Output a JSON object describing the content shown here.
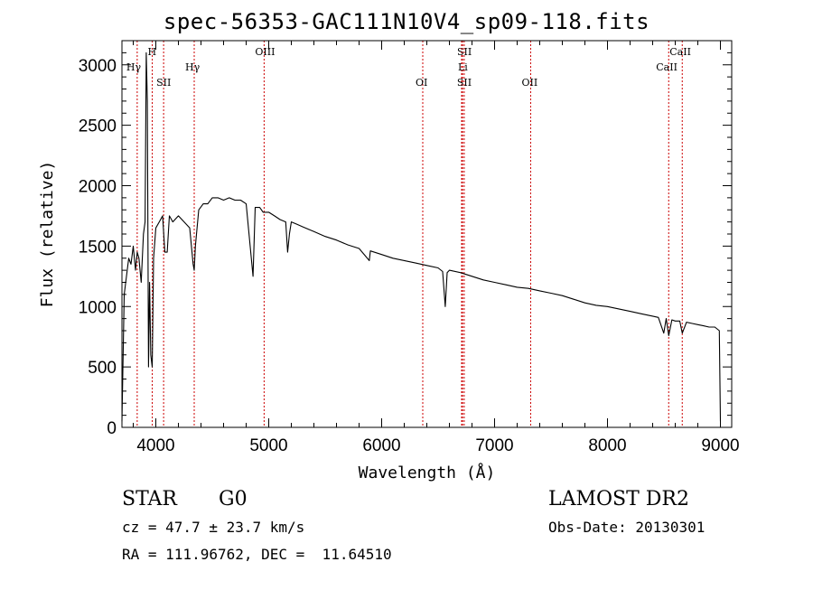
{
  "chart_data": {
    "type": "line",
    "title": "spec-56353-GAC111N10V4_sp09-118.fits",
    "xlabel": "Wavelength (Å)",
    "ylabel": "Flux (relative)",
    "xlim": [
      3700,
      9100
    ],
    "ylim": [
      0,
      3200
    ],
    "x_ticks": [
      4000,
      5000,
      6000,
      7000,
      8000,
      9000
    ],
    "y_ticks": [
      0,
      500,
      1000,
      1500,
      2000,
      2500,
      3000
    ],
    "grid": false,
    "series": [
      {
        "x": [
          3700,
          3720,
          3740,
          3760,
          3780,
          3800,
          3820,
          3835,
          3850,
          3870,
          3890,
          3905,
          3915,
          3925,
          3935,
          3945,
          3955,
          3968,
          3980,
          4000,
          4030,
          4060,
          4080,
          4101,
          4120,
          4150,
          4200,
          4250,
          4300,
          4330,
          4340,
          4350,
          4380,
          4420,
          4460,
          4500,
          4550,
          4600,
          4650,
          4700,
          4750,
          4800,
          4861,
          4880,
          4920,
          4950,
          5000,
          5050,
          5100,
          5150,
          5167,
          5183,
          5200,
          5250,
          5300,
          5400,
          5500,
          5600,
          5700,
          5800,
          5890,
          5900,
          6000,
          6100,
          6200,
          6300,
          6400,
          6500,
          6540,
          6563,
          6580,
          6600,
          6700,
          6800,
          6900,
          7000,
          7100,
          7200,
          7300,
          7400,
          7500,
          7600,
          7700,
          7800,
          7900,
          8000,
          8100,
          8200,
          8300,
          8400,
          8450,
          8498,
          8520,
          8542,
          8570,
          8600,
          8640,
          8662,
          8700,
          8750,
          8800,
          8850,
          8900,
          8950,
          8990,
          9000
        ],
        "y": [
          50,
          1100,
          1250,
          1400,
          1350,
          1500,
          1300,
          1450,
          1400,
          1200,
          1600,
          1700,
          3100,
          2700,
          500,
          1200,
          600,
          500,
          1400,
          1650,
          1700,
          1750,
          1450,
          1450,
          1750,
          1700,
          1750,
          1700,
          1650,
          1350,
          1300,
          1500,
          1800,
          1850,
          1850,
          1900,
          1900,
          1880,
          1900,
          1880,
          1880,
          1850,
          1250,
          1820,
          1820,
          1780,
          1780,
          1750,
          1720,
          1700,
          1450,
          1600,
          1700,
          1680,
          1660,
          1620,
          1580,
          1550,
          1510,
          1480,
          1380,
          1460,
          1430,
          1400,
          1380,
          1360,
          1340,
          1320,
          1290,
          1000,
          1280,
          1300,
          1280,
          1250,
          1220,
          1200,
          1180,
          1160,
          1150,
          1130,
          1110,
          1090,
          1060,
          1030,
          1010,
          1000,
          980,
          960,
          940,
          920,
          910,
          780,
          900,
          760,
          890,
          880,
          880,
          780,
          870,
          860,
          850,
          840,
          830,
          830,
          800,
          50
        ]
      }
    ],
    "line_ids": [
      {
        "name": "Hγ",
        "x": 3835
      },
      {
        "name": "H",
        "x": 3968
      },
      {
        "name": "SII",
        "x": 4069
      },
      {
        "name": "Hγ",
        "x": 4340
      },
      {
        "name": "OIII",
        "x": 4959
      },
      {
        "name": "OI",
        "x": 6364
      },
      {
        "name": "SII",
        "x": 6716
      },
      {
        "name": "Li",
        "x": 6708
      },
      {
        "name": "SII",
        "x": 6731
      },
      {
        "name": "OII",
        "x": 7320
      },
      {
        "name": "CaII",
        "x": 8542
      },
      {
        "name": "CaII",
        "x": 8662
      }
    ]
  },
  "info": {
    "object_class": "STAR",
    "subclass": "G0",
    "survey": "LAMOST DR2",
    "redshift": "cz = 47.7 ± 23.7 km/s",
    "obs_date": "Obs-Date: 20130301",
    "coords": "RA = 111.96762, DEC =  11.64510"
  },
  "colors": {
    "line": "#000000",
    "marker": "#cc0000"
  }
}
